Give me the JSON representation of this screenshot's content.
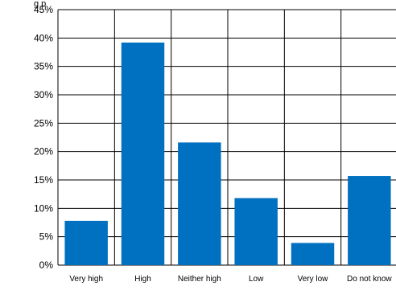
{
  "chart_data": {
    "type": "bar",
    "title": "",
    "xlabel": "",
    "ylabel": "",
    "categories": [
      "Very high",
      "High",
      "Neither high",
      "Low",
      "Very low",
      "Do not know"
    ],
    "values": [
      7.8,
      39.2,
      21.6,
      11.8,
      3.9,
      15.7
    ],
    "ylim": [
      0,
      45
    ],
    "yticks": [
      "0%",
      "5%",
      "10%",
      "15%",
      "20%",
      "25%",
      "30%",
      "35%",
      "40%",
      "45%"
    ],
    "grid": true,
    "bar_color": "#0070C0",
    "top_text_fragment": "g    p"
  }
}
